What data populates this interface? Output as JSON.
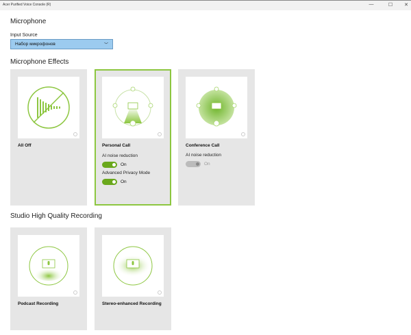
{
  "window": {
    "title": "Acer Purified Voice Console (R)",
    "minimize": "—",
    "maximize": "☐",
    "close": "✕"
  },
  "microphone": {
    "heading": "Microphone",
    "input_label": "Input Source",
    "input_value": "Набор микрофонов"
  },
  "effects": {
    "heading": "Microphone Effects",
    "cards": [
      {
        "name": "All Off"
      },
      {
        "name": "Personal Call",
        "selected": true,
        "toggles": [
          {
            "label": "AI noise reduction",
            "state": "On",
            "enabled": true
          },
          {
            "label": "Advanced Privacy Mode",
            "state": "On",
            "enabled": true
          }
        ]
      },
      {
        "name": "Conference Call",
        "toggles": [
          {
            "label": "AI noise reduction",
            "state": "On",
            "enabled": false
          }
        ]
      }
    ]
  },
  "studio": {
    "heading": "Studio High Quality Recording",
    "cards": [
      {
        "name": "Podcast Recording"
      },
      {
        "name": "Stereo-enhanced Recording"
      }
    ]
  },
  "colors": {
    "accent": "#8cc63f",
    "toggle_on": "#6aa81c",
    "select_bg": "#9ccbef",
    "card_bg": "#e6e6e6"
  }
}
